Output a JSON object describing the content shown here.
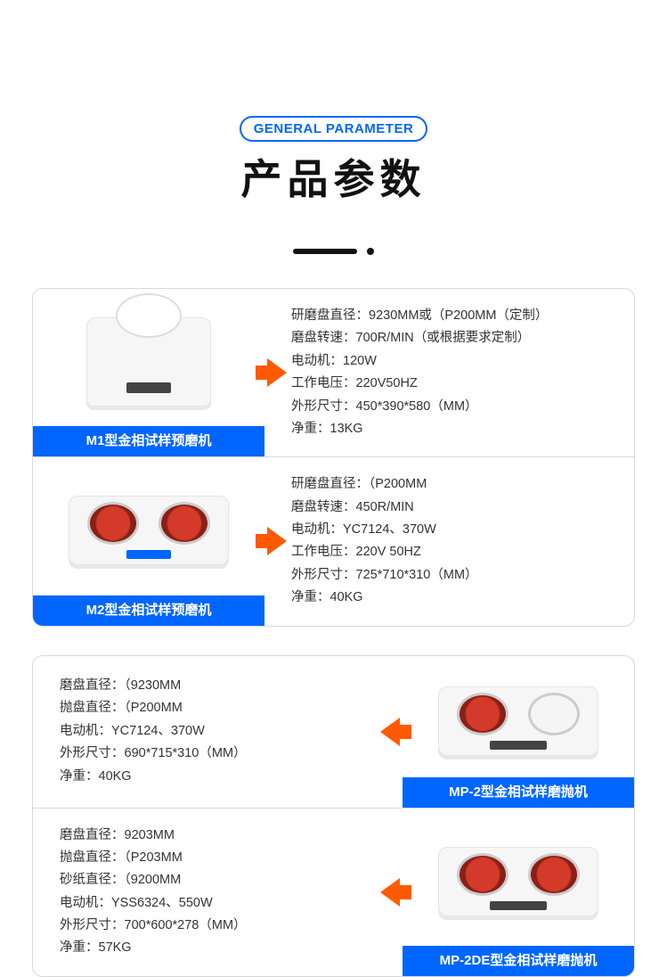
{
  "header": {
    "badge": "GENERAL PARAMETER",
    "title": "产品参数"
  },
  "colors": {
    "accent": "#0066ff",
    "arrow": "#ff5a00",
    "text": "#333333",
    "border": "#d5d8dc",
    "disc_red": "#d43a2a"
  },
  "group1": [
    {
      "label": "M1型金相试样预磨机",
      "specs": [
        "研磨盘直径：9230MM或（P200MM（定制）",
        "磨盘转速：700R/MIN（或根据要求定制）",
        "电动机：120W",
        "工作电压：220V50HZ",
        "外形尺寸：450*390*580（MM）",
        "净重：13KG"
      ]
    },
    {
      "label": "M2型金相试样预磨机",
      "specs": [
        "研磨盘直径：（P200MM",
        "磨盘转速：450R/MIN",
        "电动机：YC7124、370W",
        "工作电压：220V 50HZ",
        "外形尺寸：725*710*310（MM）",
        "净重：40KG"
      ]
    }
  ],
  "group2": [
    {
      "label": "MP-2型金相试样磨抛机",
      "specs": [
        "磨盘直径：（9230MM",
        "抛盘直径：（P200MM",
        "电动机：YC7124、370W",
        "外形尺寸：690*715*310（MM）",
        "净重：40KG"
      ]
    },
    {
      "label": "MP-2DE型金相试样磨抛机",
      "specs": [
        "磨盘直径：9203MM",
        "抛盘直径：（P203MM",
        "砂纸直径：（9200MM",
        "电动机：YSS6324、550W",
        "外形尺寸：700*600*278（MM）",
        "净重：57KG"
      ]
    }
  ]
}
